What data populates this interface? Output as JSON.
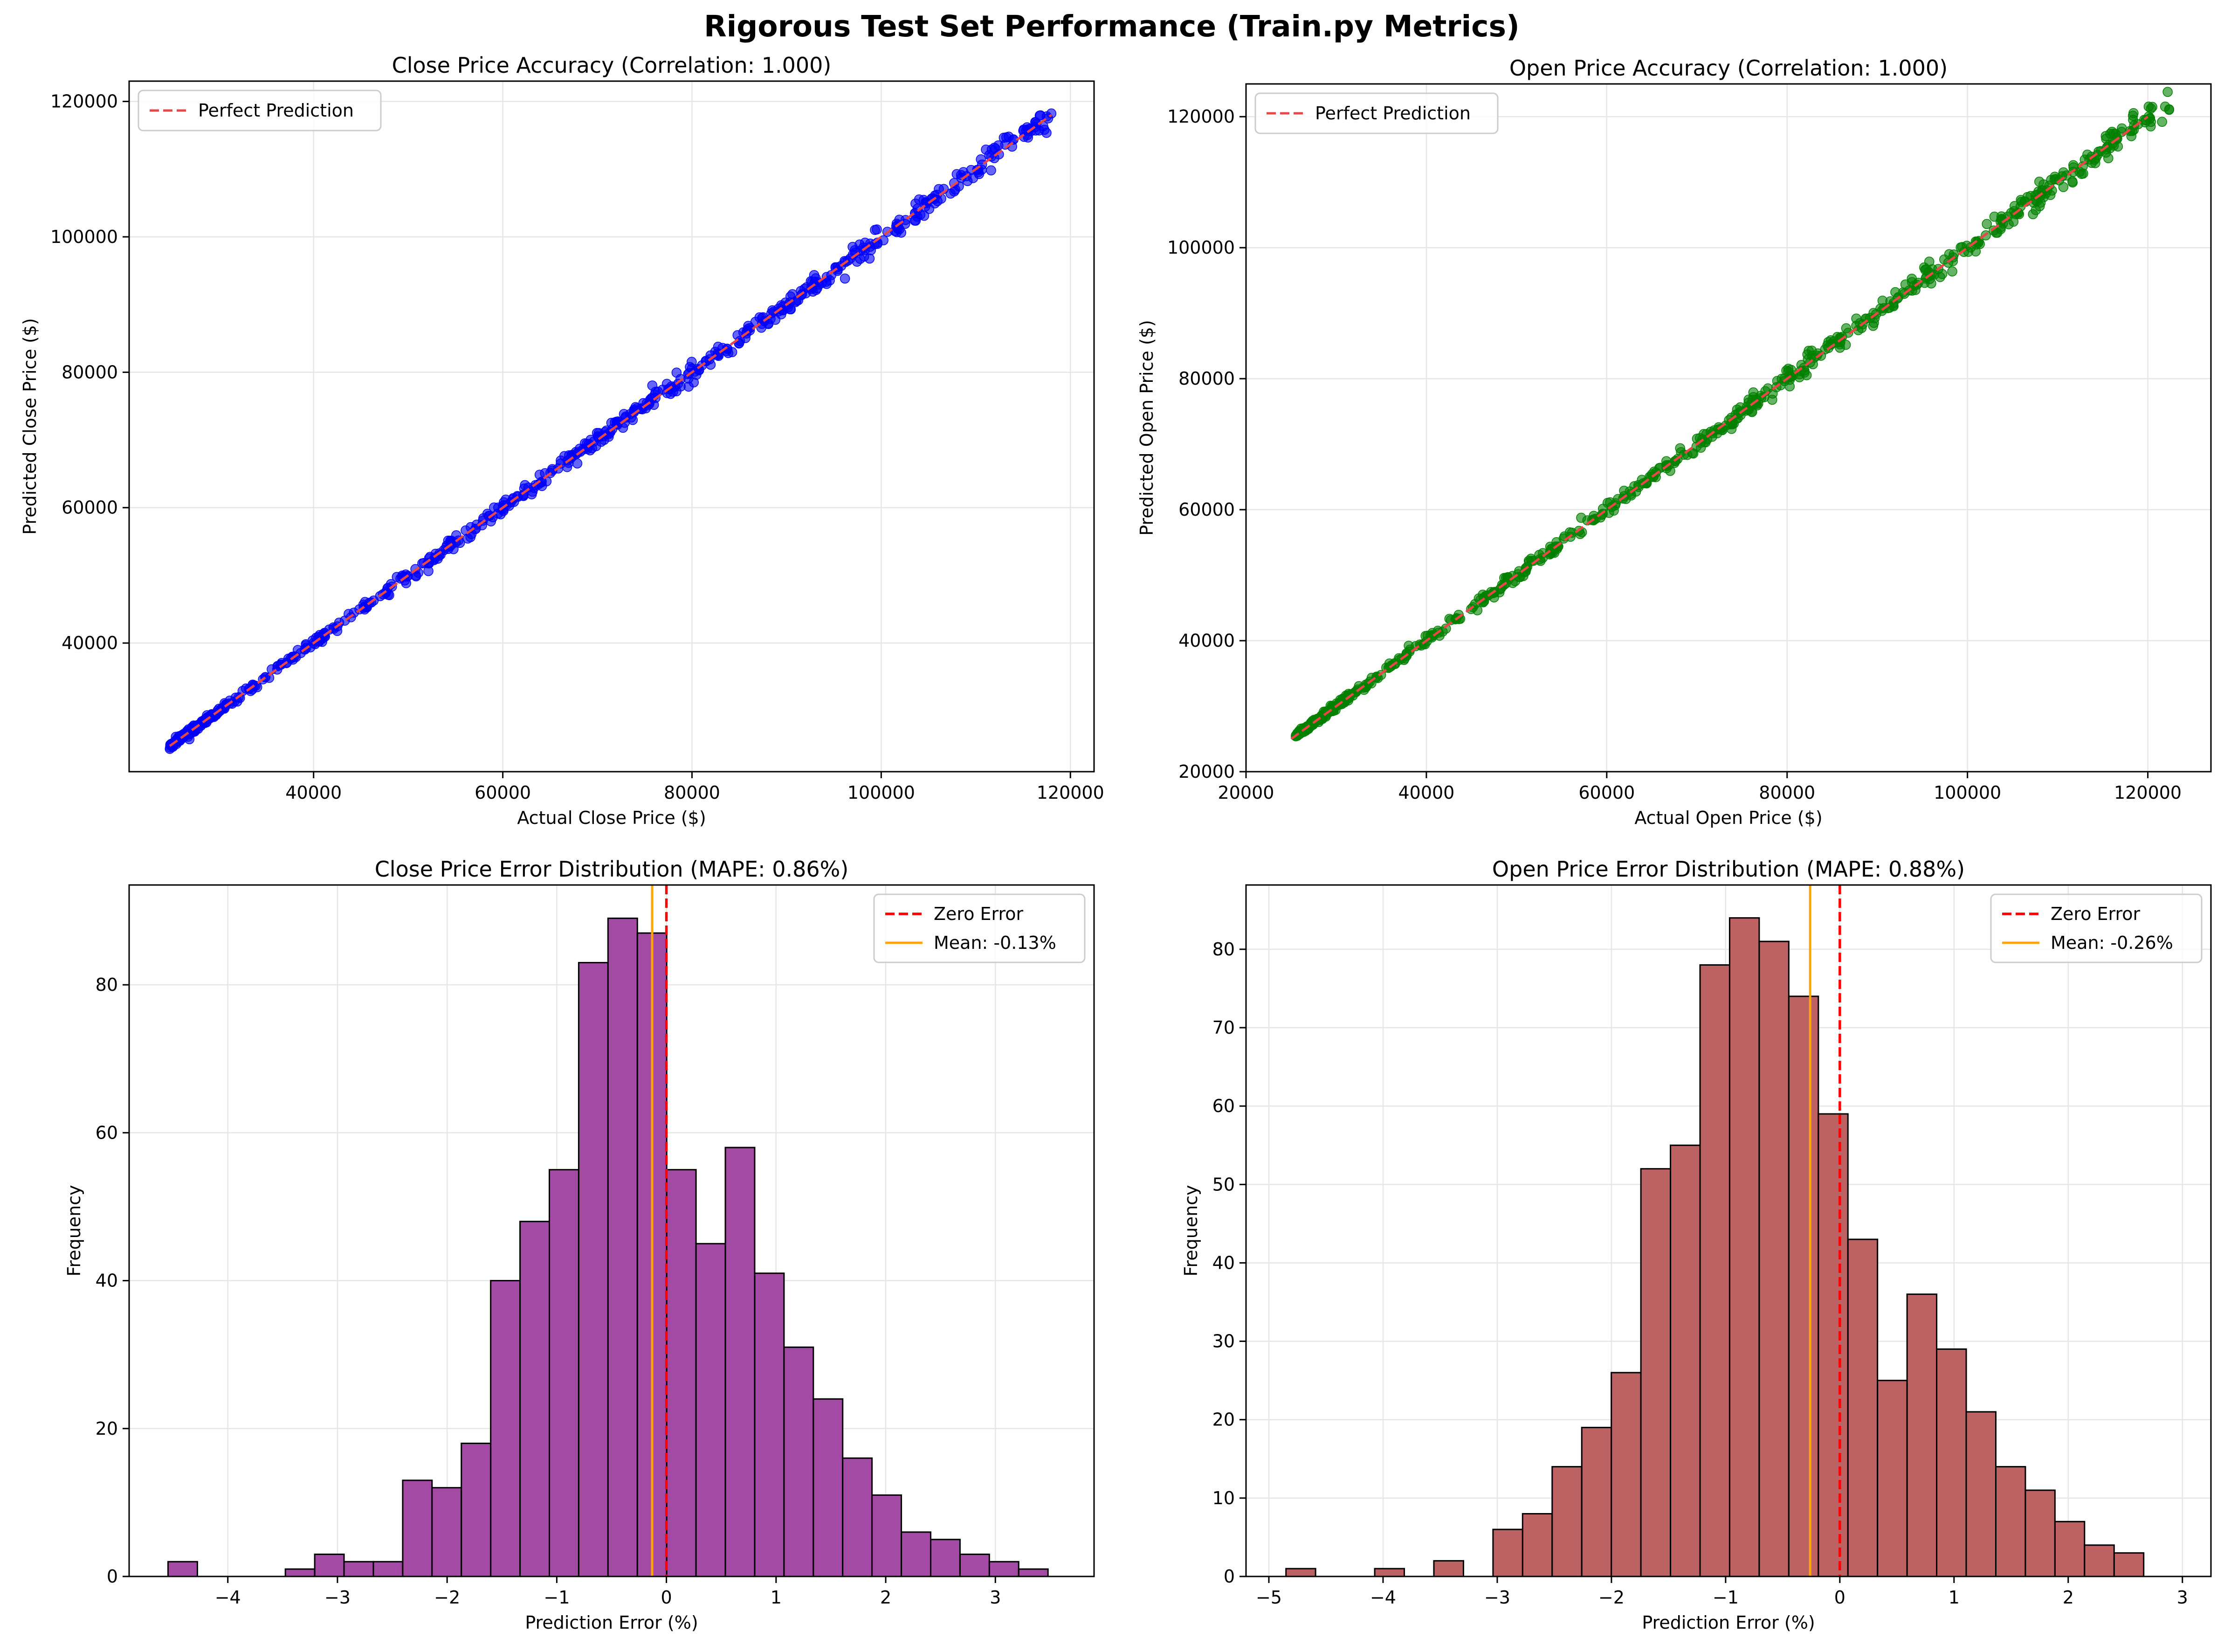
{
  "figure": {
    "title": "Rigorous Test Set Performance (Train.py Metrics)"
  },
  "chart_data": [
    {
      "id": "close-scatter",
      "type": "scatter",
      "title": "Close Price Accuracy (Correlation: 1.000)",
      "xlabel": "Actual Close Price ($)",
      "ylabel": "Predicted Close Price ($)",
      "xlim": [
        20500,
        122500
      ],
      "ylim": [
        21000,
        123000
      ],
      "xticks": [
        40000,
        60000,
        80000,
        100000,
        120000
      ],
      "yticks": [
        40000,
        60000,
        80000,
        100000,
        120000
      ],
      "grid": true,
      "legend": "upper-left",
      "point_color": "#0000ff",
      "point_count": 680,
      "x_range": [
        24800,
        118000
      ],
      "reference_line": {
        "name": "Perfect Prediction",
        "color": "#e8474a",
        "from": [
          24800,
          24800
        ],
        "to": [
          118000,
          118000
        ]
      }
    },
    {
      "id": "open-scatter",
      "type": "scatter",
      "title": "Open Price Accuracy (Correlation: 1.000)",
      "xlabel": "Actual Open Price ($)",
      "ylabel": "Predicted Open Price ($)",
      "xlim": [
        20000,
        127000
      ],
      "ylim": [
        20000,
        125000
      ],
      "xticks": [
        20000,
        40000,
        60000,
        80000,
        100000,
        120000
      ],
      "yticks": [
        20000,
        40000,
        60000,
        80000,
        100000,
        120000
      ],
      "grid": true,
      "legend": "upper-left",
      "point_color": "#008000",
      "point_count": 680,
      "x_range": [
        25500,
        122500
      ],
      "reference_line": {
        "name": "Perfect Prediction",
        "color": "#e8474a",
        "from": [
          25000,
          25000
        ],
        "to": [
          120000,
          120000
        ]
      }
    },
    {
      "id": "close-hist",
      "type": "bar",
      "title": "Close Price Error Distribution (MAPE: 0.86%)",
      "xlabel": "Prediction Error (%)",
      "ylabel": "Frequency",
      "xlim": [
        -4.9,
        3.9
      ],
      "ylim": [
        0,
        93.5
      ],
      "xticks": [
        -4,
        -3,
        -2,
        -1,
        0,
        1,
        2,
        3
      ],
      "yticks": [
        0,
        20,
        40,
        60,
        80
      ],
      "grid": true,
      "legend": "upper-right",
      "bar_color": "#a24aa4",
      "bin_start": -4.545,
      "bin_width": 0.2675,
      "counts": [
        2,
        0,
        0,
        0,
        1,
        3,
        2,
        2,
        13,
        12,
        18,
        40,
        48,
        55,
        83,
        89,
        87,
        55,
        45,
        58,
        41,
        31,
        24,
        16,
        11,
        6,
        5,
        3,
        2,
        1
      ],
      "zero_line": {
        "name": "Zero Error",
        "value": 0,
        "color": "#ff0000"
      },
      "mean_line": {
        "name": "Mean: -0.13%",
        "value": -0.13,
        "color": "#ffa500"
      }
    },
    {
      "id": "open-hist",
      "type": "bar",
      "title": "Open Price Error Distribution (MAPE: 0.88%)",
      "xlabel": "Prediction Error (%)",
      "ylabel": "Frequency",
      "xlim": [
        -5.2,
        3.25
      ],
      "ylim": [
        0,
        88.2
      ],
      "xticks": [
        -5,
        -4,
        -3,
        -2,
        -1,
        0,
        1,
        2,
        3
      ],
      "yticks": [
        0,
        10,
        20,
        30,
        40,
        50,
        60,
        70,
        80
      ],
      "grid": true,
      "legend": "upper-right",
      "bar_color": "#bc6262",
      "bin_start": -4.85,
      "bin_width": 0.259,
      "counts": [
        1,
        0,
        0,
        1,
        0,
        2,
        0,
        6,
        8,
        14,
        19,
        26,
        52,
        55,
        78,
        84,
        81,
        74,
        59,
        43,
        25,
        36,
        29,
        21,
        14,
        11,
        7,
        4,
        3
      ],
      "zero_line": {
        "name": "Zero Error",
        "value": 0,
        "color": "#ff0000"
      },
      "mean_line": {
        "name": "Mean: -0.26%",
        "value": -0.26,
        "color": "#ffa500"
      }
    }
  ]
}
